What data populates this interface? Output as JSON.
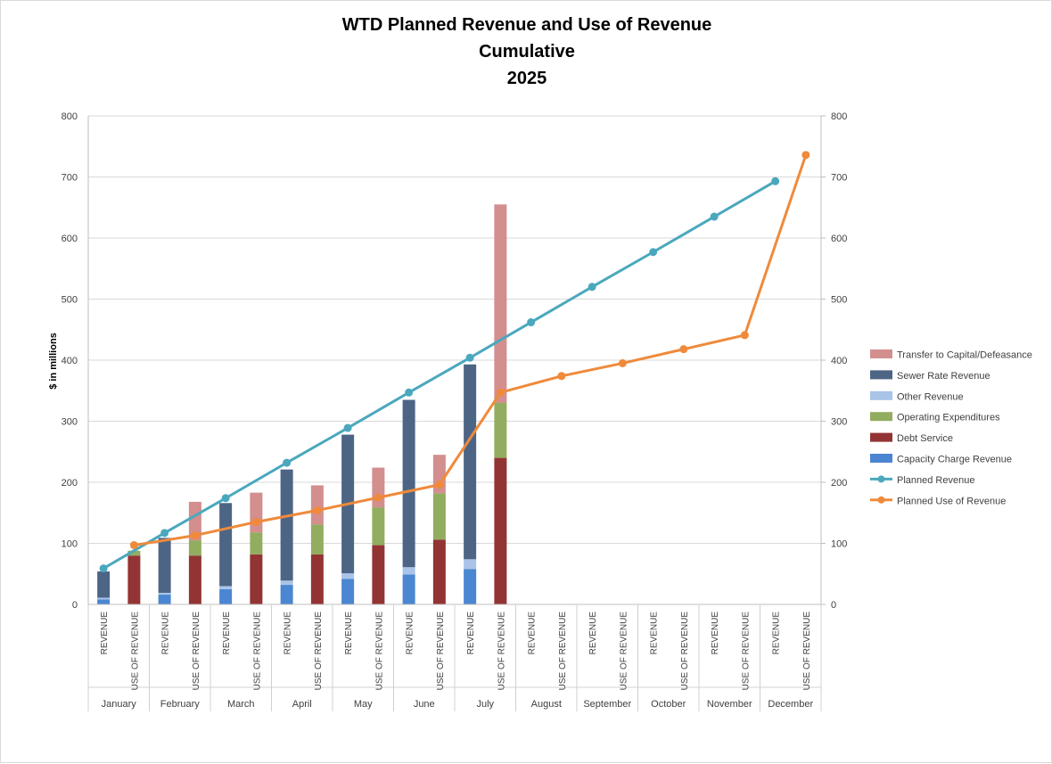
{
  "chart_data": {
    "type": "bar",
    "title_lines": [
      "WTD Planned Revenue and Use of Revenue",
      "Cumulative",
      "2025"
    ],
    "ylabel": "$ in millions",
    "ylim": [
      0,
      800
    ],
    "y2lim": [
      0,
      800
    ],
    "yticks": [
      "0",
      "100",
      "200",
      "300",
      "400",
      "500",
      "600",
      "700",
      "800"
    ],
    "y2ticks": [
      "0",
      "100",
      "200",
      "300",
      "400",
      "500",
      "600",
      "700",
      "800"
    ],
    "months": [
      "January",
      "February",
      "March",
      "April",
      "May",
      "June",
      "July",
      "August",
      "September",
      "October",
      "November",
      "December"
    ],
    "subcategories": [
      "REVENUE",
      "USE OF REVENUE"
    ],
    "stacked": true,
    "grid": true,
    "legend_position": "right",
    "revenue_series": [
      {
        "name": "Capacity Charge Revenue",
        "color": "#4a86d1",
        "values": [
          8,
          16,
          25,
          32,
          42,
          49,
          58,
          null,
          null,
          null,
          null,
          null
        ]
      },
      {
        "name": "Other Revenue",
        "color": "#a9c4e8",
        "values": [
          3,
          3,
          5,
          7,
          9,
          12,
          16,
          null,
          null,
          null,
          null,
          null
        ]
      },
      {
        "name": "Sewer Rate Revenue",
        "color": "#4d6585",
        "values": [
          43,
          90,
          136,
          182,
          227,
          274,
          319,
          null,
          null,
          null,
          null,
          null
        ]
      }
    ],
    "use_series": [
      {
        "name": "Debt Service",
        "color": "#933434",
        "values": [
          80,
          80,
          82,
          82,
          97,
          106,
          240,
          null,
          null,
          null,
          null,
          null
        ]
      },
      {
        "name": "Operating Expenditures",
        "color": "#92ad5f",
        "values": [
          8,
          25,
          36,
          49,
          62,
          76,
          90,
          null,
          null,
          null,
          null,
          null
        ]
      },
      {
        "name": "Transfer to Capital/Defeasance",
        "color": "#d38e8e",
        "values": [
          0,
          63,
          65,
          64,
          65,
          63,
          325,
          null,
          null,
          null,
          null,
          null
        ]
      }
    ],
    "line_series": [
      {
        "name": "Planned Revenue",
        "color": "#4aa8bd",
        "values": [
          59,
          117,
          174,
          232,
          289,
          347,
          404,
          462,
          520,
          577,
          635,
          693
        ]
      },
      {
        "name": "Planned Use of Revenue",
        "color": "#ef8a3b",
        "values": [
          97,
          113,
          135,
          154,
          175,
          196,
          347,
          374,
          395,
          418,
          441,
          736
        ]
      }
    ],
    "legend_order": [
      "Transfer to Capital/Defeasance",
      "Sewer Rate Revenue",
      "Other Revenue",
      "Operating Expenditures",
      "Debt Service",
      "Capacity Charge Revenue",
      "Planned Revenue",
      "Planned Use of Revenue"
    ]
  }
}
